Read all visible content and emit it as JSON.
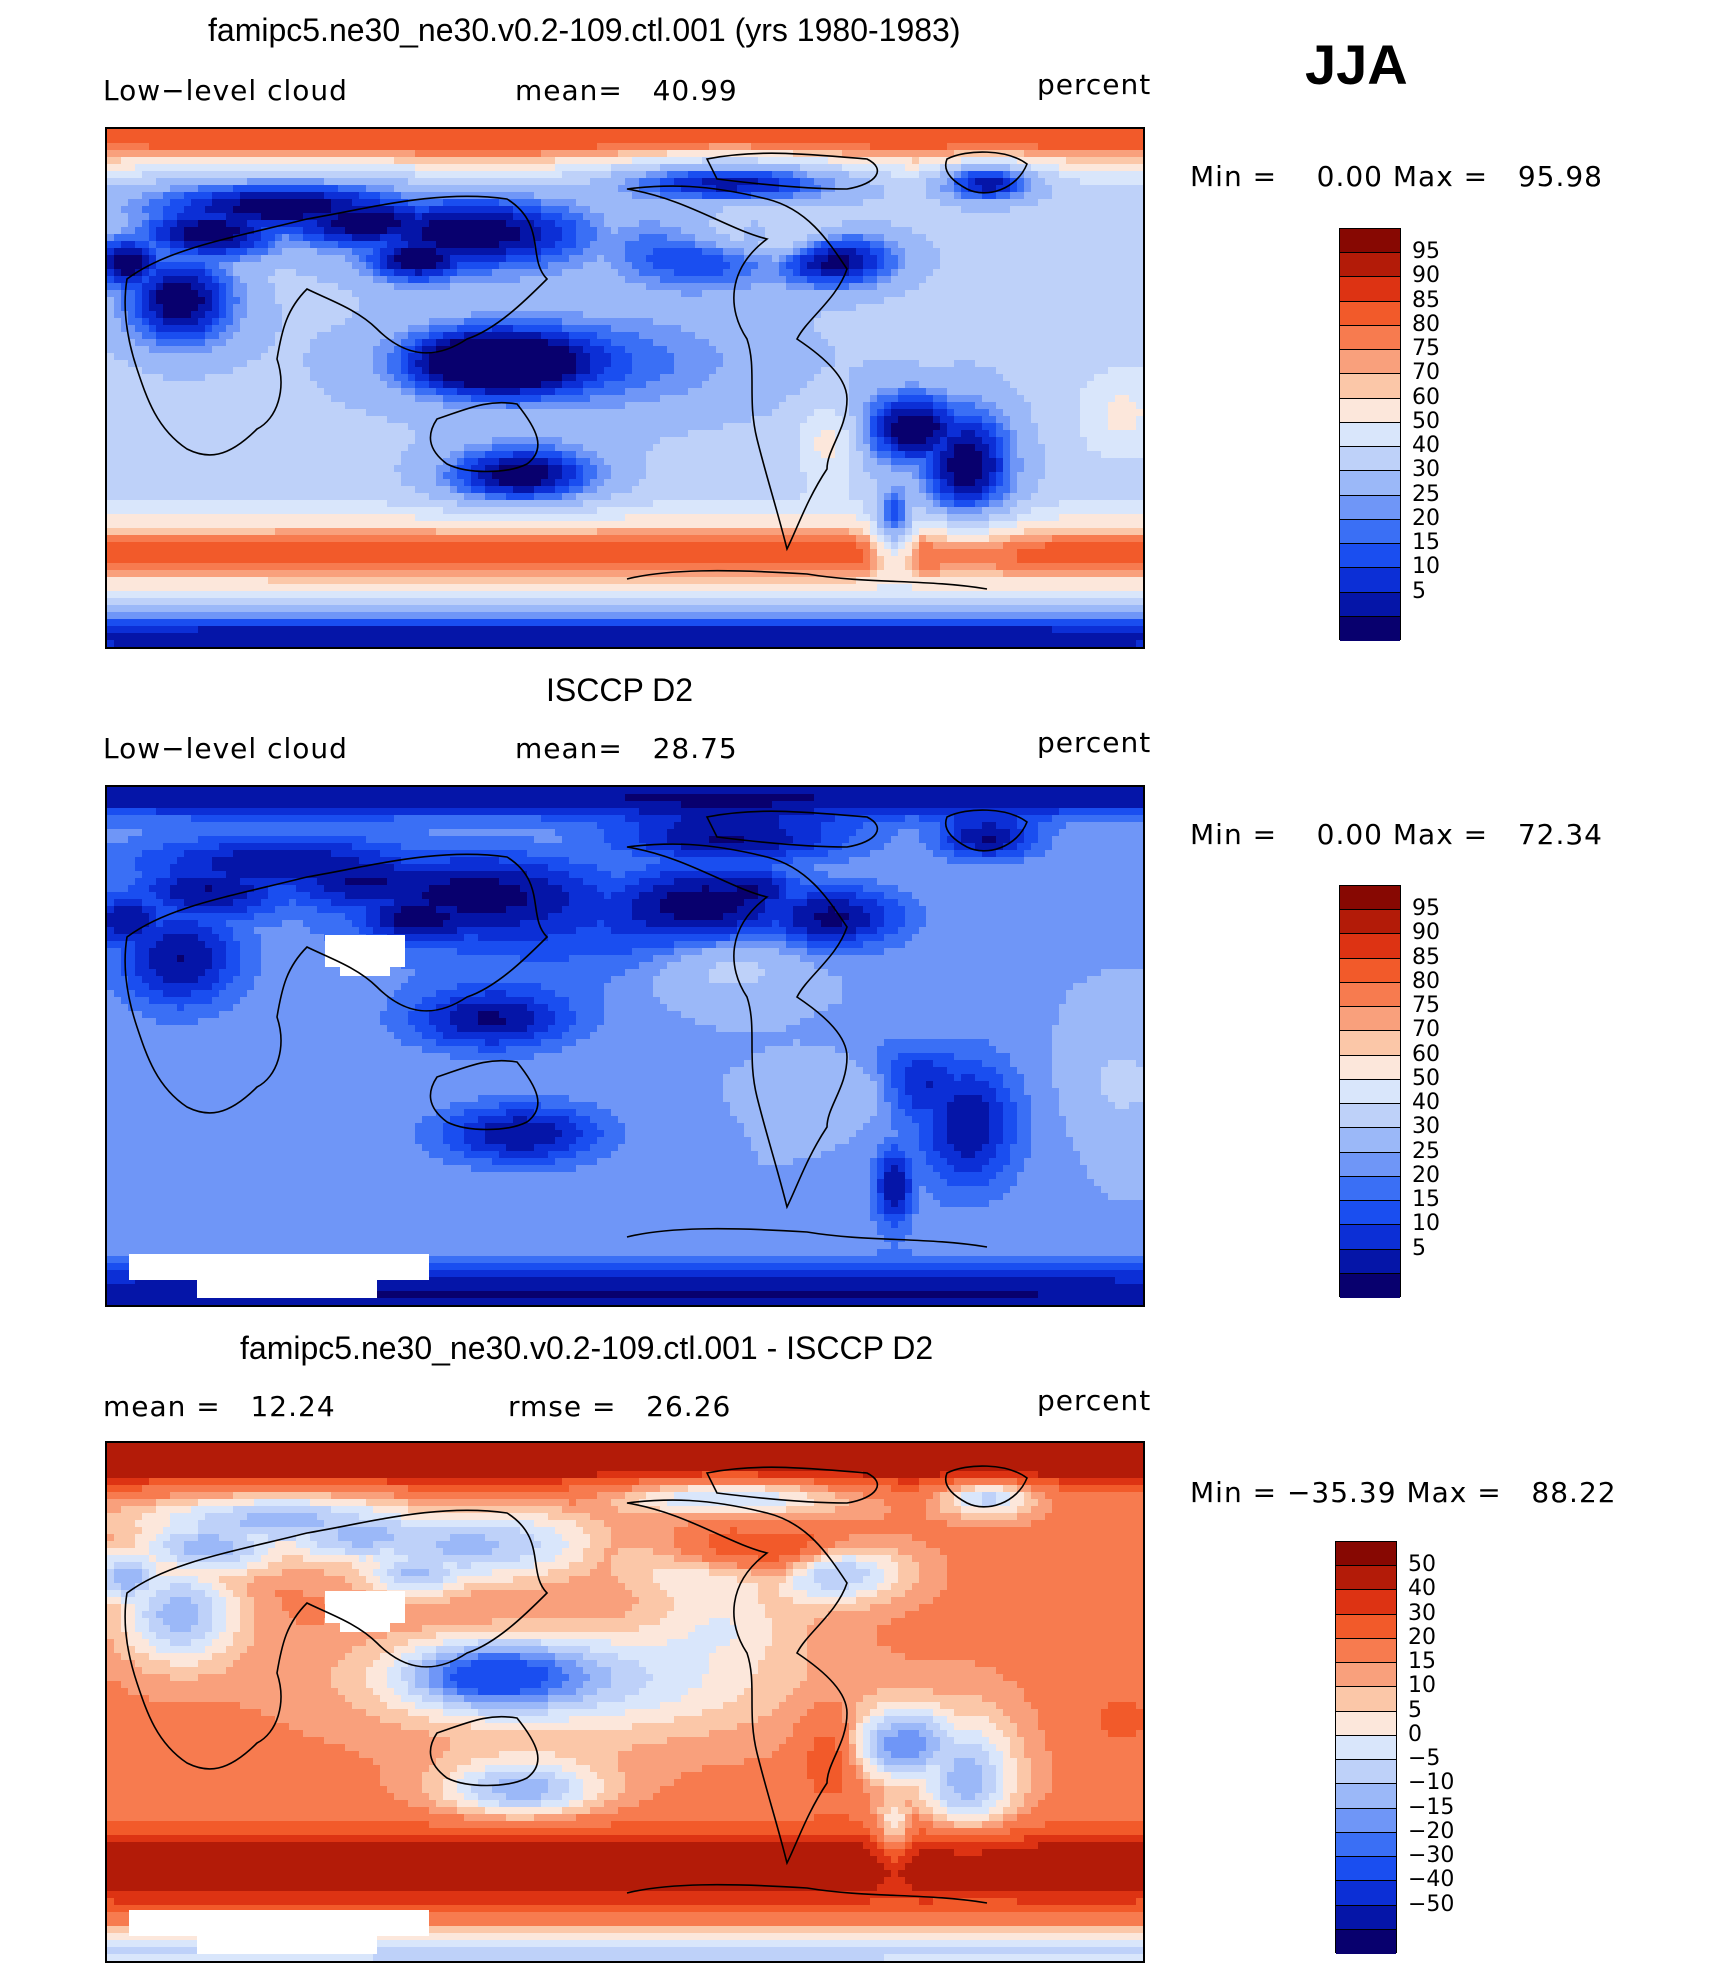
{
  "season": "JJA",
  "colors": {
    "seq": [
      "#08006e",
      "#0515a8",
      "#0c2fd6",
      "#1a4ef0",
      "#3a6ff5",
      "#6f96f7",
      "#9bb8f8",
      "#bed1f9",
      "#d9e6fb",
      "#fce7db",
      "#fbc7a8",
      "#f9a07c",
      "#f77b4f",
      "#f25a2a",
      "#dd3313",
      "#b31b08",
      "#870802"
    ],
    "diff": [
      "#08006e",
      "#0515a8",
      "#0c2fd6",
      "#1a4ef0",
      "#3a6ff5",
      "#6f96f7",
      "#9bb8f8",
      "#bed1f9",
      "#d9e6fb",
      "#fce7db",
      "#fbc7a8",
      "#f9a07c",
      "#f77b4f",
      "#f25a2a",
      "#dd3313",
      "#b31b08",
      "#870802"
    ],
    "coast": "#000000",
    "missing": "#ffffff"
  },
  "panels": [
    {
      "title": "famipc5.ne30_ne30.v0.2-109.ctl.001 (yrs 1980-1983)",
      "left_text": "Low−level cloud",
      "mid_text": "mean=   40.99",
      "right_text": "percent",
      "minmax": "Min =    0.00 Max =   95.98",
      "field": "model"
    },
    {
      "title": "ISCCP D2",
      "left_text": "Low−level cloud",
      "mid_text": "mean=   28.75",
      "right_text": "percent",
      "minmax": "Min =    0.00 Max =   72.34",
      "field": "obs"
    },
    {
      "title": "famipc5.ne30_ne30.v0.2-109.ctl.001 - ISCCP D2",
      "left_text": "mean =   12.24",
      "mid_text": "rmse =   26.26",
      "right_text": "percent",
      "minmax": "Min = −35.39 Max =   88.22",
      "field": "diff"
    }
  ],
  "colorbar_seq_labels": [
    "95",
    "90",
    "85",
    "80",
    "75",
    "70",
    "60",
    "50",
    "40",
    "30",
    "25",
    "20",
    "15",
    "10",
    "5"
  ],
  "colorbar_diff_labels": [
    "50",
    "40",
    "30",
    "20",
    "15",
    "10",
    "5",
    "0",
    "−5",
    "−10",
    "−15",
    "−20",
    "−30",
    "−40",
    "−50"
  ]
}
